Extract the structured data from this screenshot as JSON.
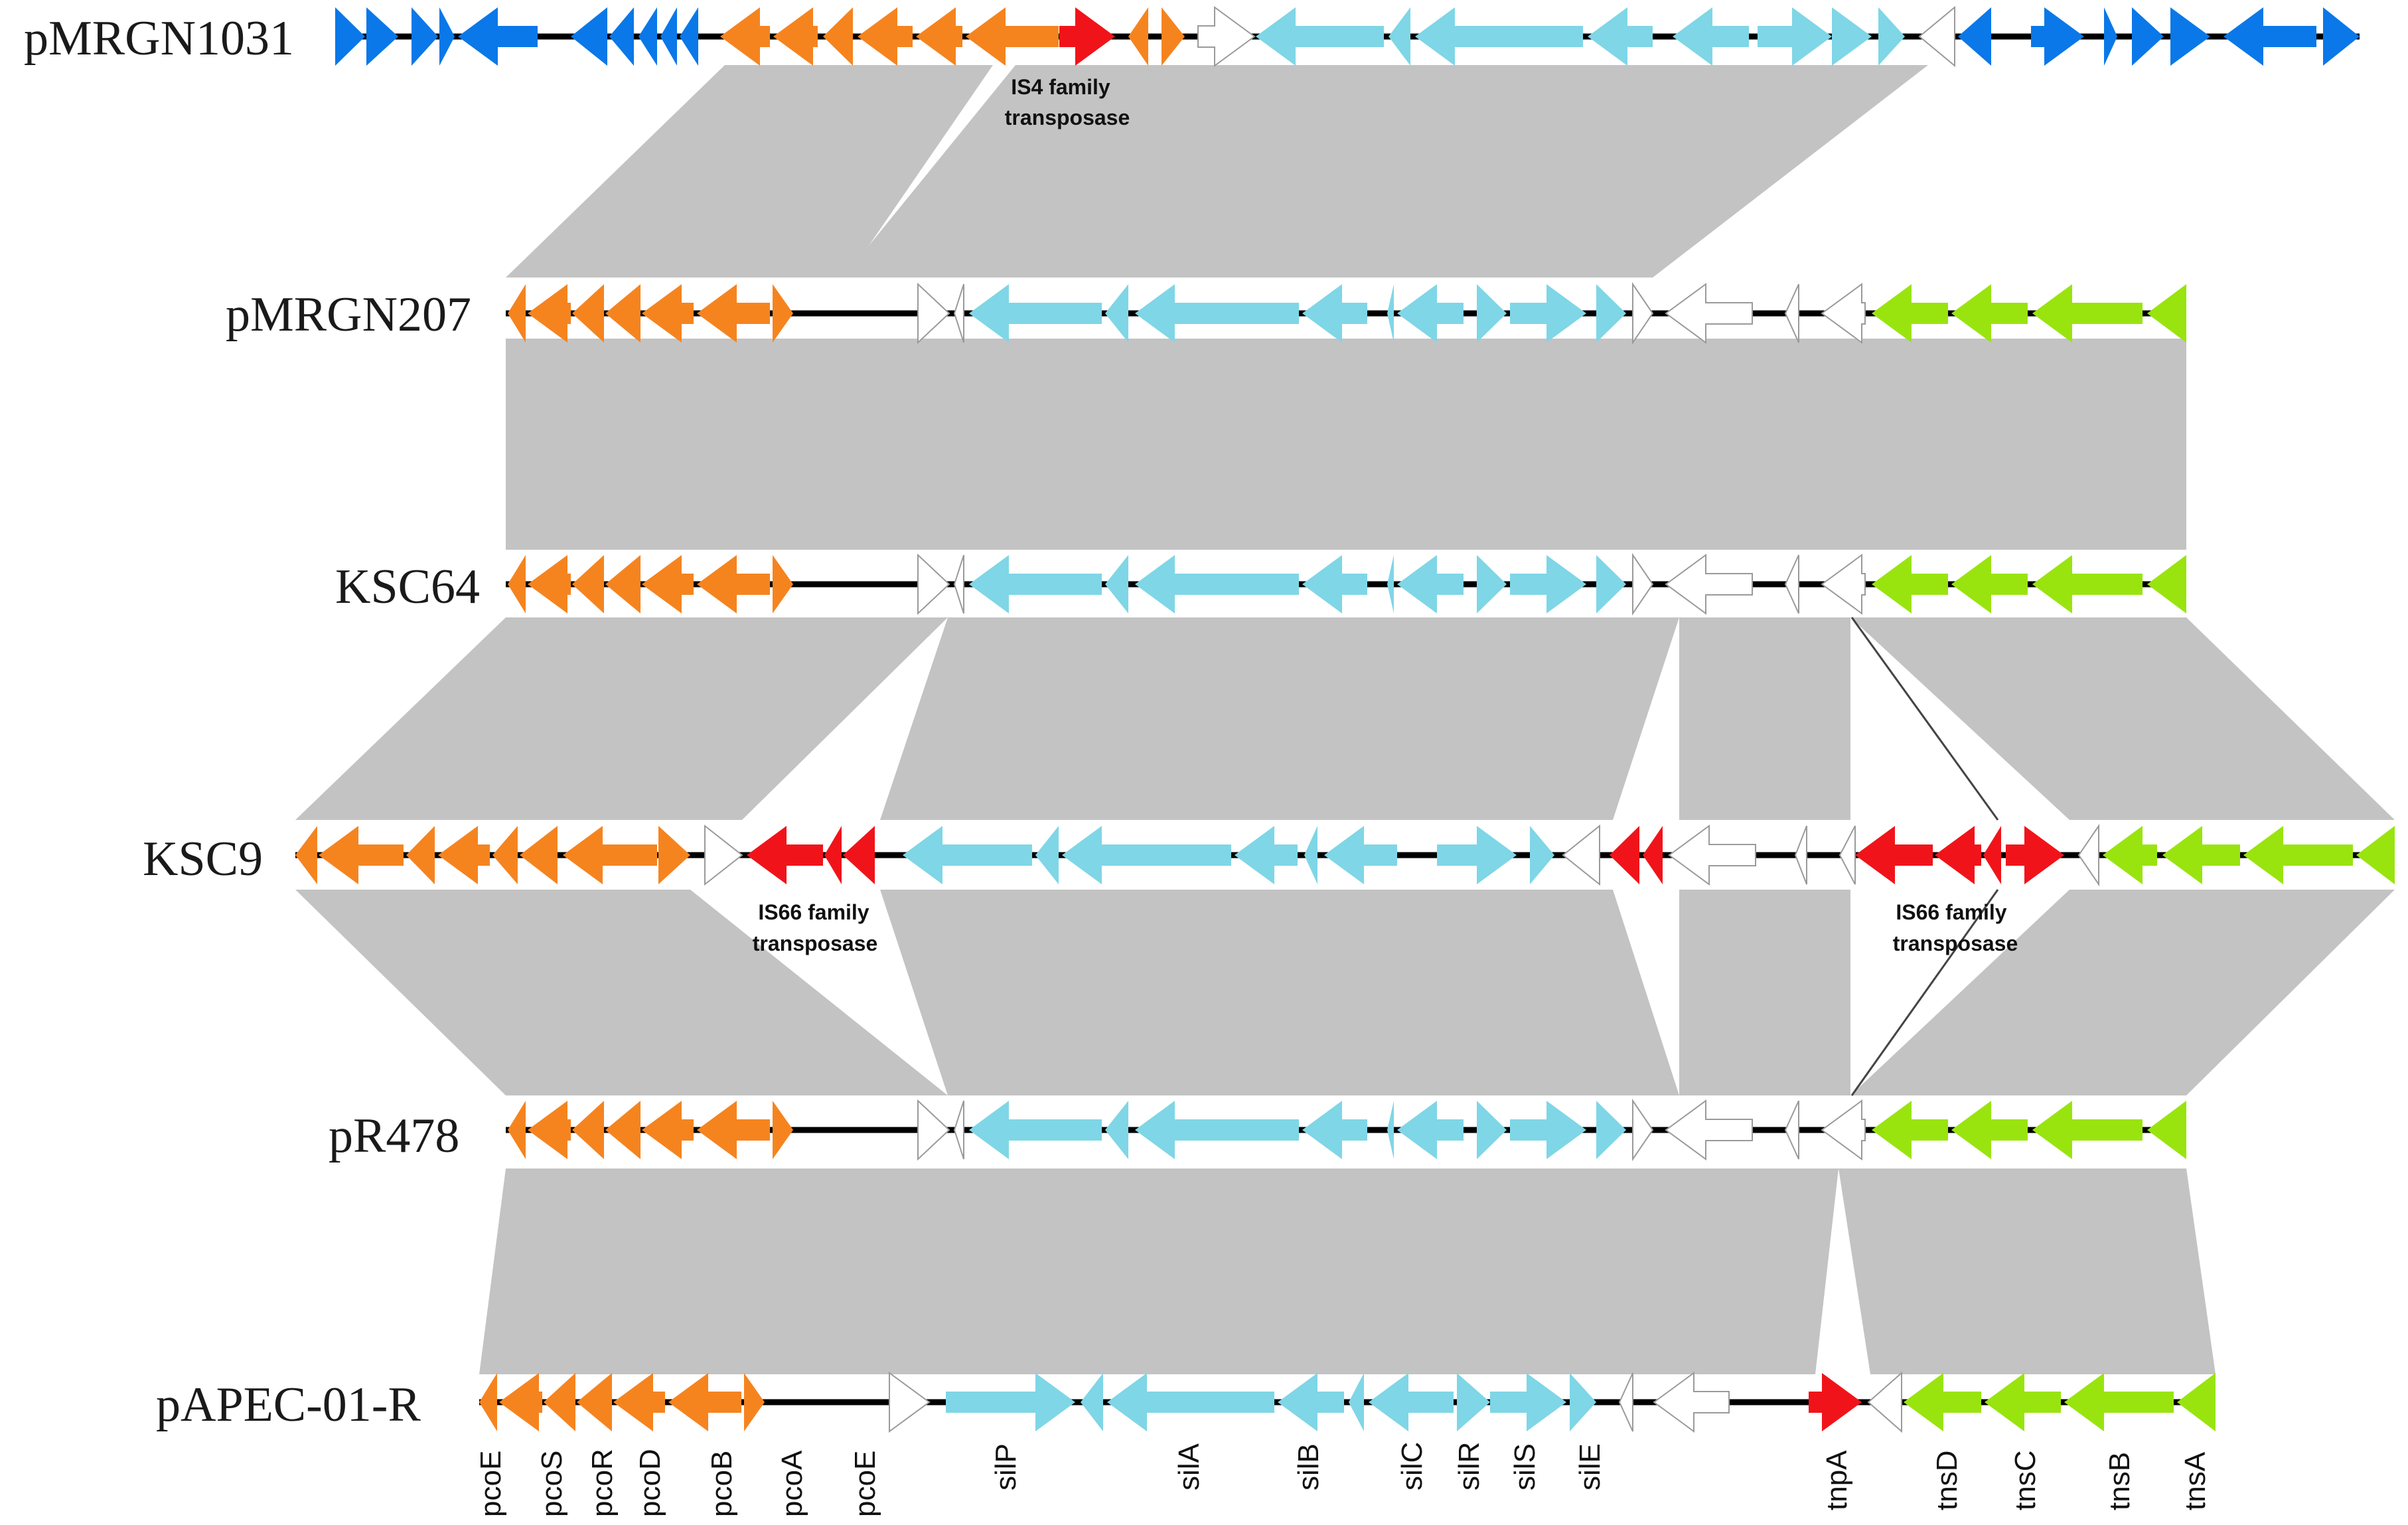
{
  "tracks": [
    {
      "id": "t1",
      "label": "pMRGN1031"
    },
    {
      "id": "t2",
      "label": "pMRGN207"
    },
    {
      "id": "t3",
      "label": "KSC64"
    },
    {
      "id": "t4",
      "label": "KSC9"
    },
    {
      "id": "t5",
      "label": "pR478"
    },
    {
      "id": "t6",
      "label": "pAPEC-01-R"
    }
  ],
  "annotations": {
    "is4": [
      "IS4 family",
      "transposase"
    ],
    "is66_left": [
      "IS66 family",
      "transposase"
    ],
    "is66_right": [
      "IS66 family",
      "transposase"
    ]
  },
  "gene_labels": [
    "pcoE",
    "pcoS",
    "pcoR",
    "pcoD",
    "pcoB",
    "pcoA",
    "pcoE",
    "silP",
    "silA",
    "silB",
    "silC",
    "silR",
    "silS",
    "silE",
    "tnpA",
    "tnsD",
    "tnsC",
    "tnsB",
    "tnsA"
  ],
  "legend_colors": {
    "other_plasmid": "#0a78e8",
    "pco_copper": "#f5841f",
    "sil_silver": "#7fd6e6",
    "transposase": "#f0141a",
    "tns_transposon": "#99e40f",
    "hypothetical": "#ffffff",
    "homology": "#c3c3c3"
  }
}
